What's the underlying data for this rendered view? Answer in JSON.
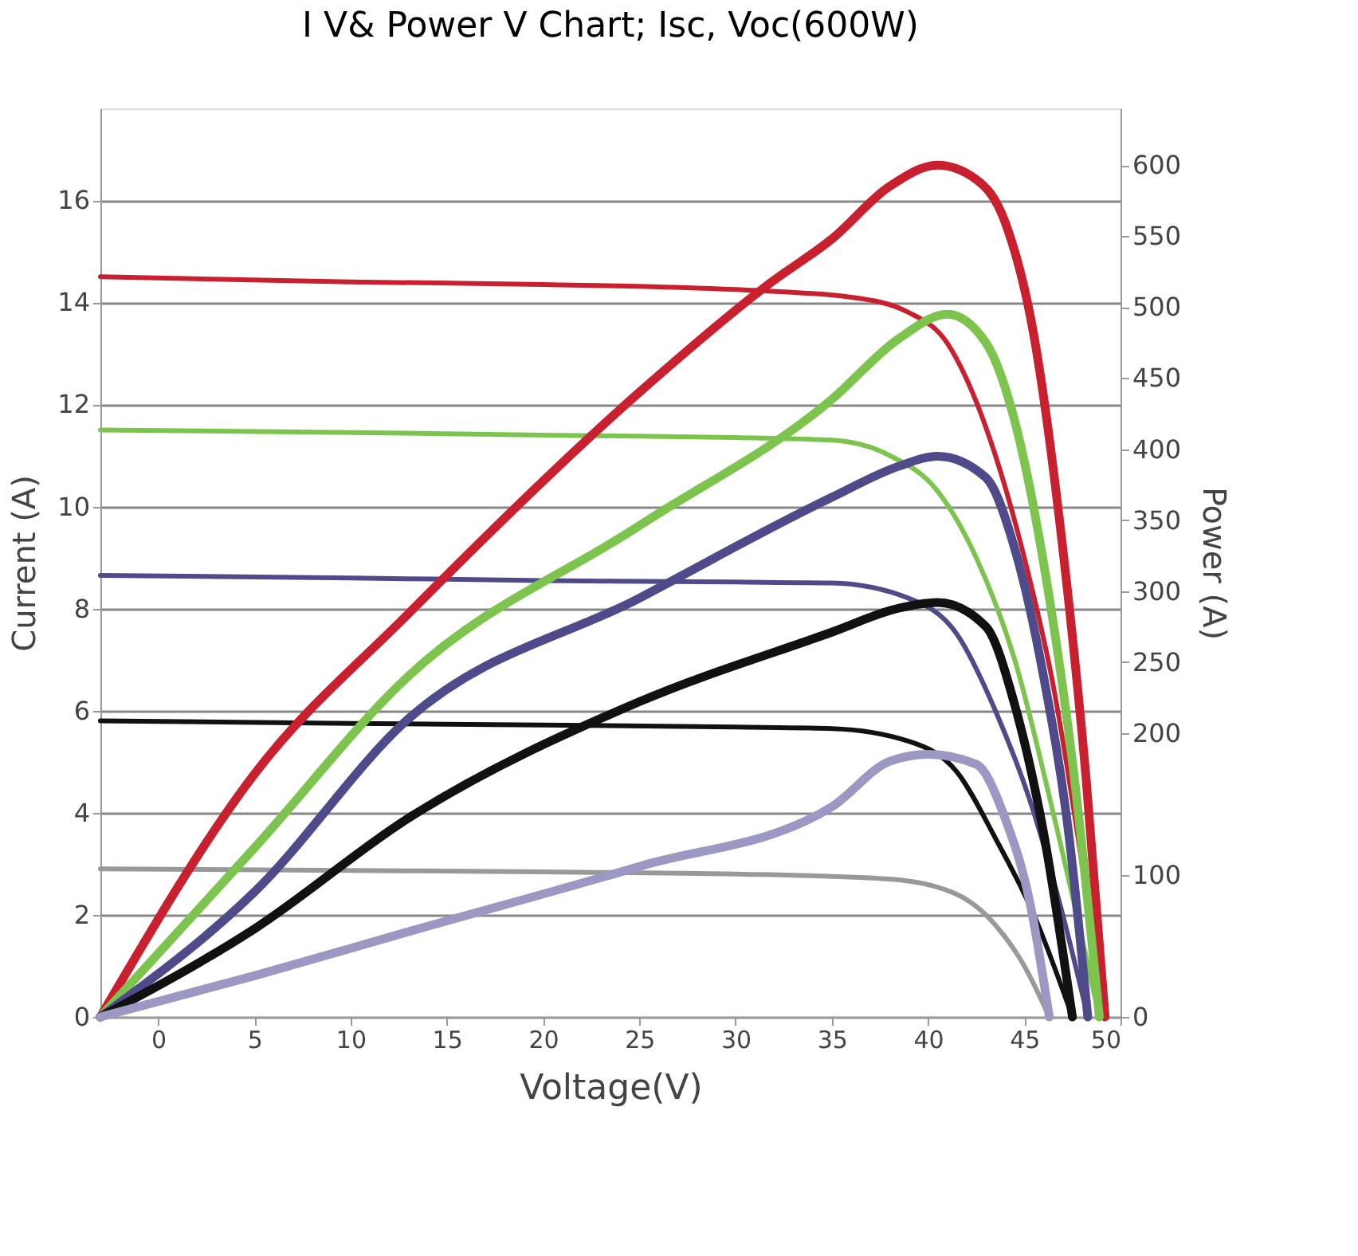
{
  "chart_data": {
    "type": "line",
    "title": "I V& Power V Chart; Isc, Voc(600W)",
    "xlabel": "Voltage(V)",
    "ylabel": "Current (A)",
    "y2label": "Power (A)",
    "xlim": [
      -3,
      50
    ],
    "xticks": [
      0,
      5,
      10,
      15,
      20,
      25,
      30,
      35,
      40,
      45,
      50
    ],
    "ylim": [
      0,
      17.8
    ],
    "yticks": [
      0,
      2,
      4,
      6,
      8,
      10,
      12,
      14,
      16
    ],
    "y2lim": [
      0,
      640
    ],
    "y2ticks": [
      0,
      100,
      200,
      250,
      300,
      350,
      400,
      450,
      500,
      550,
      600
    ],
    "grid": "y",
    "legend": false,
    "series": [
      {
        "color": "#c8202e",
        "x": [
          -3,
          10,
          20,
          30,
          36,
          39,
          41,
          42,
          43.5,
          45,
          46.5,
          47.8,
          49.1
        ],
        "values": [
          14.5,
          14.4,
          14.35,
          14.25,
          14.1,
          13.8,
          13.2,
          12.5,
          11,
          9,
          6.5,
          3.5,
          0
        ]
      },
      {
        "color": "#7dc44f",
        "x": [
          -3,
          10,
          20,
          30,
          35,
          38,
          40.5,
          42.5,
          44.5,
          46.5,
          48.9
        ],
        "values": [
          11.5,
          11.45,
          11.4,
          11.35,
          11.3,
          11.0,
          10.3,
          9,
          7,
          4,
          0
        ]
      },
      {
        "color": "#4f4a8a",
        "x": [
          -3,
          10,
          20,
          30,
          35,
          39,
          41.5,
          43.5,
          45.5,
          47,
          48.3
        ],
        "values": [
          8.65,
          8.6,
          8.55,
          8.52,
          8.5,
          8.2,
          7.5,
          6,
          4,
          2,
          0
        ]
      },
      {
        "color": "#111111",
        "x": [
          -3,
          10,
          20,
          30,
          35,
          39,
          41.5,
          43.5,
          45.5,
          47.5
        ],
        "values": [
          5.8,
          5.75,
          5.72,
          5.68,
          5.65,
          5.4,
          4.8,
          3.5,
          2,
          0
        ]
      },
      {
        "color": "#999999",
        "x": [
          -3,
          10,
          20,
          30,
          38,
          41.5,
          43.5,
          45,
          46.3
        ],
        "values": [
          2.9,
          2.87,
          2.84,
          2.8,
          2.7,
          2.4,
          1.8,
          1,
          0
        ]
      },
      {
        "color": "#c8202e",
        "axis": "y2",
        "x": [
          -3,
          5,
          13,
          25,
          31.8,
          35,
          38,
          40.5,
          42.5,
          44,
          45.5,
          47,
          48.2,
          49.2
        ],
        "values": [
          0,
          171,
          284,
          440,
          517,
          548,
          585,
          600,
          590,
          560,
          480,
          330,
          170,
          0
        ]
      },
      {
        "color": "#7dc44f",
        "axis": "y2",
        "x": [
          -3,
          5,
          13,
          25,
          35,
          38.5,
          41,
          43,
          44.5,
          46,
          47.5,
          48.9
        ],
        "values": [
          0,
          119,
          240,
          346,
          435,
          478,
          495,
          475,
          420,
          320,
          180,
          0
        ]
      },
      {
        "color": "#4f4a8a",
        "axis": "y2",
        "x": [
          -3,
          5,
          13,
          25,
          35,
          38.5,
          40.5,
          43,
          44.5,
          46,
          47.3,
          48.3
        ],
        "values": [
          0,
          88,
          210,
          295,
          366,
          388,
          395,
          380,
          330,
          240,
          130,
          0
        ]
      },
      {
        "color": "#111111",
        "axis": "y2",
        "x": [
          -3,
          5,
          13,
          25,
          35,
          38.5,
          40.5,
          43,
          44.5,
          46,
          47.5
        ],
        "values": [
          0,
          62,
          140,
          222,
          271,
          288,
          292,
          275,
          220,
          130,
          0
        ]
      },
      {
        "color": "#9b98c4",
        "axis": "y2",
        "x": [
          -3,
          5,
          13,
          25,
          35,
          38,
          40,
          42.5,
          44,
          45.3,
          46.3
        ],
        "values": [
          0,
          29,
          60,
          106,
          148,
          180,
          185,
          178,
          140,
          80,
          0
        ]
      }
    ]
  }
}
